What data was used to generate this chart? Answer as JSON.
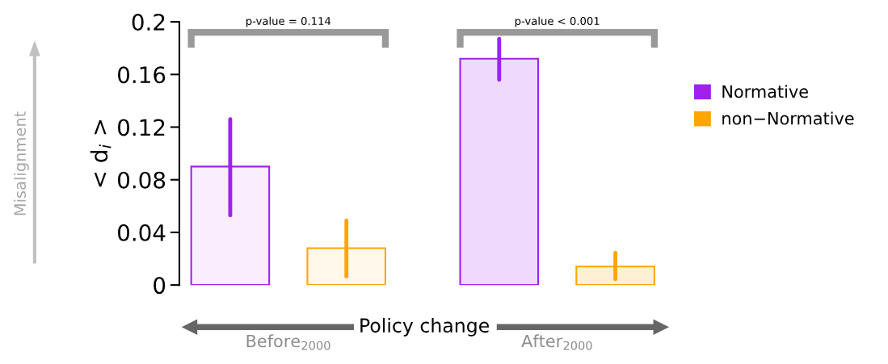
{
  "chart_data": {
    "type": "bar",
    "ylabel": "< d$_{i}$ >",
    "xlabel": "Policy change",
    "categories": [
      "Before$_{2000}$",
      "After$_{2000}$"
    ],
    "series": [
      {
        "name": "Normative",
        "color": "#a020f0",
        "values": [
          0.09,
          0.172
        ],
        "errors": [
          [
            0.053,
            0.126
          ],
          [
            0.156,
            0.187
          ]
        ]
      },
      {
        "name": "non−Normative",
        "color": "#ffa500",
        "values": [
          0.028,
          0.014
        ],
        "errors": [
          [
            0.0065,
            0.049
          ],
          [
            0.0045,
            0.0245
          ]
        ]
      }
    ],
    "ylim": [
      0,
      0.2
    ],
    "yticks": [
      0,
      0.04,
      0.08,
      0.12,
      0.16,
      0.2
    ],
    "annotations": [
      "p-value = 0.114",
      "p-value < 0.001",
      "Misalignment"
    ],
    "legend": "right",
    "grid": false
  }
}
